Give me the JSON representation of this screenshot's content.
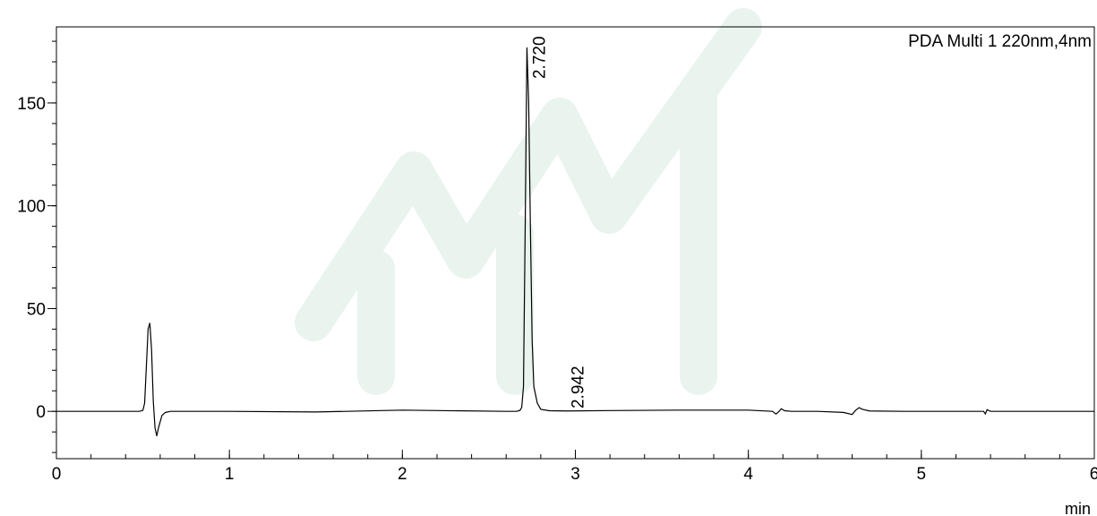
{
  "chart_data": {
    "type": "line",
    "title": "PDA Multi 1 220nm,4nm",
    "xlabel": "min",
    "ylabel": "",
    "xlim": [
      0,
      6
    ],
    "ylim": [
      -23,
      187
    ],
    "x_ticks": [
      "0",
      "1",
      "2",
      "3",
      "4",
      "5",
      "6"
    ],
    "y_ticks": [
      "0",
      "50",
      "100",
      "150"
    ],
    "grid": false,
    "series": [
      {
        "x": [
          0,
          0.4,
          0.48,
          0.5,
          0.51,
          0.52,
          0.53,
          0.54,
          0.55,
          0.56,
          0.57,
          0.58,
          0.59,
          0.61,
          0.63,
          0.66,
          0.7,
          1.0,
          1.5,
          2.0,
          2.6,
          2.66,
          2.68,
          2.69,
          2.7,
          2.71,
          2.72,
          2.73,
          2.74,
          2.75,
          2.76,
          2.78,
          2.8,
          2.85,
          2.95,
          3.2,
          3.6,
          4.0,
          4.14,
          4.16,
          4.18,
          4.19,
          4.21,
          4.25,
          4.4,
          4.55,
          4.6,
          4.62,
          4.64,
          4.66,
          4.7,
          4.9,
          5.2,
          5.36,
          5.37,
          5.38,
          5.4,
          5.7,
          6.0
        ],
        "values": [
          0,
          0,
          0,
          0.5,
          4,
          22,
          40,
          43,
          30,
          5,
          -8,
          -12,
          -8,
          -2,
          -0.5,
          0,
          0,
          0,
          -0.3,
          0.6,
          0,
          0,
          0.5,
          2,
          12,
          90,
          177,
          150,
          90,
          35,
          12,
          4,
          1,
          0.3,
          0.2,
          0.4,
          0.6,
          0.6,
          0,
          -1.3,
          0.2,
          1.3,
          0.3,
          0,
          0,
          -0.5,
          -1.5,
          0.5,
          1.8,
          1.0,
          0.2,
          0,
          0,
          0,
          -1.2,
          0.8,
          0,
          0,
          0
        ]
      }
    ],
    "annotations": [
      {
        "x": 2.72,
        "label": "2.720"
      },
      {
        "x": 2.942,
        "label": "2.942"
      }
    ],
    "colors": {
      "trace": "#000000",
      "axis": "#000000",
      "watermark": "#e9f4ee"
    }
  }
}
